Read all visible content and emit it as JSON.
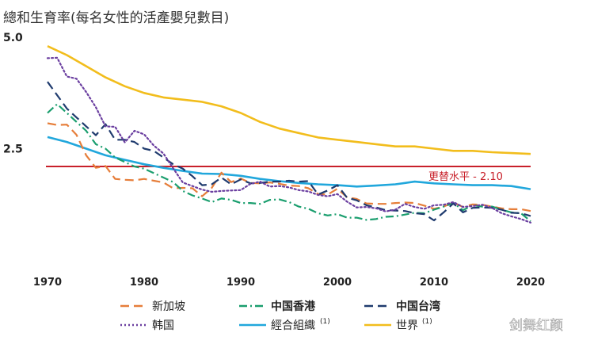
{
  "chart_data": {
    "type": "line",
    "title": "總和生育率(每名女性的活產嬰兒數目)",
    "xlabel": "",
    "ylabel": "",
    "xlim": [
      1970,
      2020
    ],
    "ylim": [
      0,
      5.0
    ],
    "y_ticks": [
      "5.0",
      "2.5"
    ],
    "x_ticks": [
      "1970",
      "1980",
      "1990",
      "2000",
      "2010",
      "2020"
    ],
    "grid": false,
    "legend_position": "bottom",
    "reference_line": {
      "value": 2.1,
      "label": "更替水平  - 2.10",
      "color": "#c8202a"
    },
    "series": [
      {
        "name": "新加坡",
        "color": "#e67e3a",
        "dash": "dashed",
        "sup": "",
        "x": [
          1970,
          1971,
          1972,
          1973,
          1974,
          1975,
          1976,
          1977,
          1978,
          1979,
          1980,
          1981,
          1982,
          1983,
          1984,
          1985,
          1986,
          1987,
          1988,
          1989,
          1990,
          1991,
          1992,
          1993,
          1994,
          1995,
          1996,
          1997,
          1998,
          1999,
          2000,
          2001,
          2002,
          2003,
          2004,
          2005,
          2006,
          2007,
          2008,
          2009,
          2010,
          2011,
          2012,
          2013,
          2014,
          2015,
          2016,
          2017,
          2018,
          2019,
          2020
        ],
        "y": [
          3.07,
          3.03,
          3.04,
          2.81,
          2.35,
          2.07,
          2.11,
          1.82,
          1.8,
          1.79,
          1.82,
          1.78,
          1.74,
          1.61,
          1.62,
          1.61,
          1.43,
          1.62,
          1.96,
          1.75,
          1.83,
          1.73,
          1.72,
          1.74,
          1.71,
          1.67,
          1.66,
          1.61,
          1.48,
          1.47,
          1.6,
          1.41,
          1.37,
          1.27,
          1.26,
          1.26,
          1.28,
          1.29,
          1.28,
          1.22,
          1.15,
          1.2,
          1.29,
          1.19,
          1.25,
          1.24,
          1.2,
          1.16,
          1.14,
          1.14,
          1.1
        ]
      },
      {
        "name": "中国香港",
        "color": "#1a9e6e",
        "dash": "dashdot",
        "sup": "",
        "x": [
          1970,
          1971,
          1972,
          1973,
          1974,
          1975,
          1976,
          1977,
          1978,
          1979,
          1980,
          1981,
          1982,
          1983,
          1984,
          1985,
          1986,
          1987,
          1988,
          1989,
          1990,
          1991,
          1992,
          1993,
          1994,
          1995,
          1996,
          1997,
          1998,
          1999,
          2000,
          2001,
          2002,
          2003,
          2004,
          2005,
          2006,
          2007,
          2008,
          2009,
          2010,
          2011,
          2012,
          2013,
          2014,
          2015,
          2016,
          2017,
          2018,
          2019,
          2020
        ],
        "y": [
          3.3,
          3.5,
          3.3,
          3.1,
          2.9,
          2.6,
          2.5,
          2.3,
          2.2,
          2.1,
          2.05,
          1.95,
          1.85,
          1.75,
          1.55,
          1.45,
          1.38,
          1.3,
          1.38,
          1.35,
          1.28,
          1.28,
          1.26,
          1.35,
          1.36,
          1.3,
          1.2,
          1.15,
          1.05,
          1.0,
          1.03,
          0.95,
          0.95,
          0.9,
          0.92,
          0.97,
          0.98,
          1.02,
          1.06,
          1.05,
          1.13,
          1.2,
          1.28,
          1.12,
          1.23,
          1.2,
          1.2,
          1.13,
          1.07,
          1.05,
          0.87
        ]
      },
      {
        "name": "中国台湾",
        "color": "#1f3b6e",
        "dash": "dashed",
        "sup": "",
        "x": [
          1970,
          1971,
          1972,
          1973,
          1974,
          1975,
          1976,
          1977,
          1978,
          1979,
          1980,
          1981,
          1982,
          1983,
          1984,
          1985,
          1986,
          1987,
          1988,
          1989,
          1990,
          1991,
          1992,
          1993,
          1994,
          1995,
          1996,
          1997,
          1998,
          1999,
          2000,
          2001,
          2002,
          2003,
          2004,
          2005,
          2006,
          2007,
          2008,
          2009,
          2010,
          2011,
          2012,
          2013,
          2014,
          2015,
          2016,
          2017,
          2018,
          2019,
          2020
        ],
        "y": [
          4.0,
          3.7,
          3.4,
          3.2,
          3.0,
          2.8,
          3.05,
          2.7,
          2.7,
          2.65,
          2.5,
          2.45,
          2.3,
          2.15,
          2.05,
          1.88,
          1.68,
          1.7,
          1.85,
          1.7,
          1.81,
          1.72,
          1.73,
          1.76,
          1.76,
          1.78,
          1.76,
          1.77,
          1.47,
          1.56,
          1.68,
          1.4,
          1.34,
          1.23,
          1.18,
          1.12,
          1.11,
          1.1,
          1.05,
          1.03,
          0.89,
          1.07,
          1.27,
          1.07,
          1.17,
          1.18,
          1.17,
          1.13,
          1.06,
          1.05,
          0.99
        ]
      },
      {
        "name": "韩国",
        "color": "#6b3fa0",
        "dash": "dotted",
        "sup": "",
        "x": [
          1970,
          1971,
          1972,
          1973,
          1974,
          1975,
          1976,
          1977,
          1978,
          1979,
          1980,
          1981,
          1982,
          1983,
          1984,
          1985,
          1986,
          1987,
          1988,
          1989,
          1990,
          1991,
          1992,
          1993,
          1994,
          1995,
          1996,
          1997,
          1998,
          1999,
          2000,
          2001,
          2002,
          2003,
          2004,
          2005,
          2006,
          2007,
          2008,
          2009,
          2010,
          2011,
          2012,
          2013,
          2014,
          2015,
          2016,
          2017,
          2018,
          2019,
          2020
        ],
        "y": [
          4.53,
          4.54,
          4.12,
          4.07,
          3.77,
          3.43,
          3.0,
          2.99,
          2.64,
          2.9,
          2.82,
          2.57,
          2.39,
          2.06,
          1.74,
          1.66,
          1.58,
          1.53,
          1.55,
          1.56,
          1.57,
          1.71,
          1.76,
          1.65,
          1.66,
          1.63,
          1.57,
          1.54,
          1.46,
          1.43,
          1.48,
          1.31,
          1.18,
          1.19,
          1.16,
          1.09,
          1.13,
          1.26,
          1.19,
          1.15,
          1.23,
          1.24,
          1.3,
          1.19,
          1.21,
          1.24,
          1.17,
          1.05,
          0.98,
          0.92,
          0.84
        ]
      },
      {
        "name": "經合組織",
        "color": "#21a7dc",
        "dash": "solid",
        "sup": "(1)",
        "x": [
          1970,
          1972,
          1974,
          1976,
          1978,
          1980,
          1982,
          1984,
          1986,
          1988,
          1990,
          1992,
          1994,
          1996,
          1998,
          2000,
          2002,
          2004,
          2006,
          2008,
          2010,
          2012,
          2014,
          2016,
          2018,
          2020
        ],
        "y": [
          2.76,
          2.65,
          2.5,
          2.35,
          2.25,
          2.15,
          2.07,
          2.0,
          1.94,
          1.93,
          1.89,
          1.82,
          1.77,
          1.73,
          1.7,
          1.68,
          1.65,
          1.67,
          1.7,
          1.76,
          1.72,
          1.7,
          1.68,
          1.68,
          1.66,
          1.59
        ]
      },
      {
        "name": "世界",
        "color": "#f2bd1c",
        "dash": "solid",
        "sup": "(1)",
        "x": [
          1970,
          1972,
          1974,
          1976,
          1978,
          1980,
          1982,
          1984,
          1986,
          1988,
          1990,
          1992,
          1994,
          1996,
          1998,
          2000,
          2002,
          2004,
          2006,
          2008,
          2010,
          2012,
          2014,
          2016,
          2018,
          2020
        ],
        "y": [
          4.8,
          4.6,
          4.35,
          4.1,
          3.9,
          3.75,
          3.65,
          3.6,
          3.55,
          3.45,
          3.3,
          3.1,
          2.95,
          2.85,
          2.75,
          2.7,
          2.65,
          2.6,
          2.55,
          2.55,
          2.5,
          2.45,
          2.45,
          2.42,
          2.4,
          2.38
        ]
      }
    ]
  },
  "watermark": "剑舞红颜"
}
